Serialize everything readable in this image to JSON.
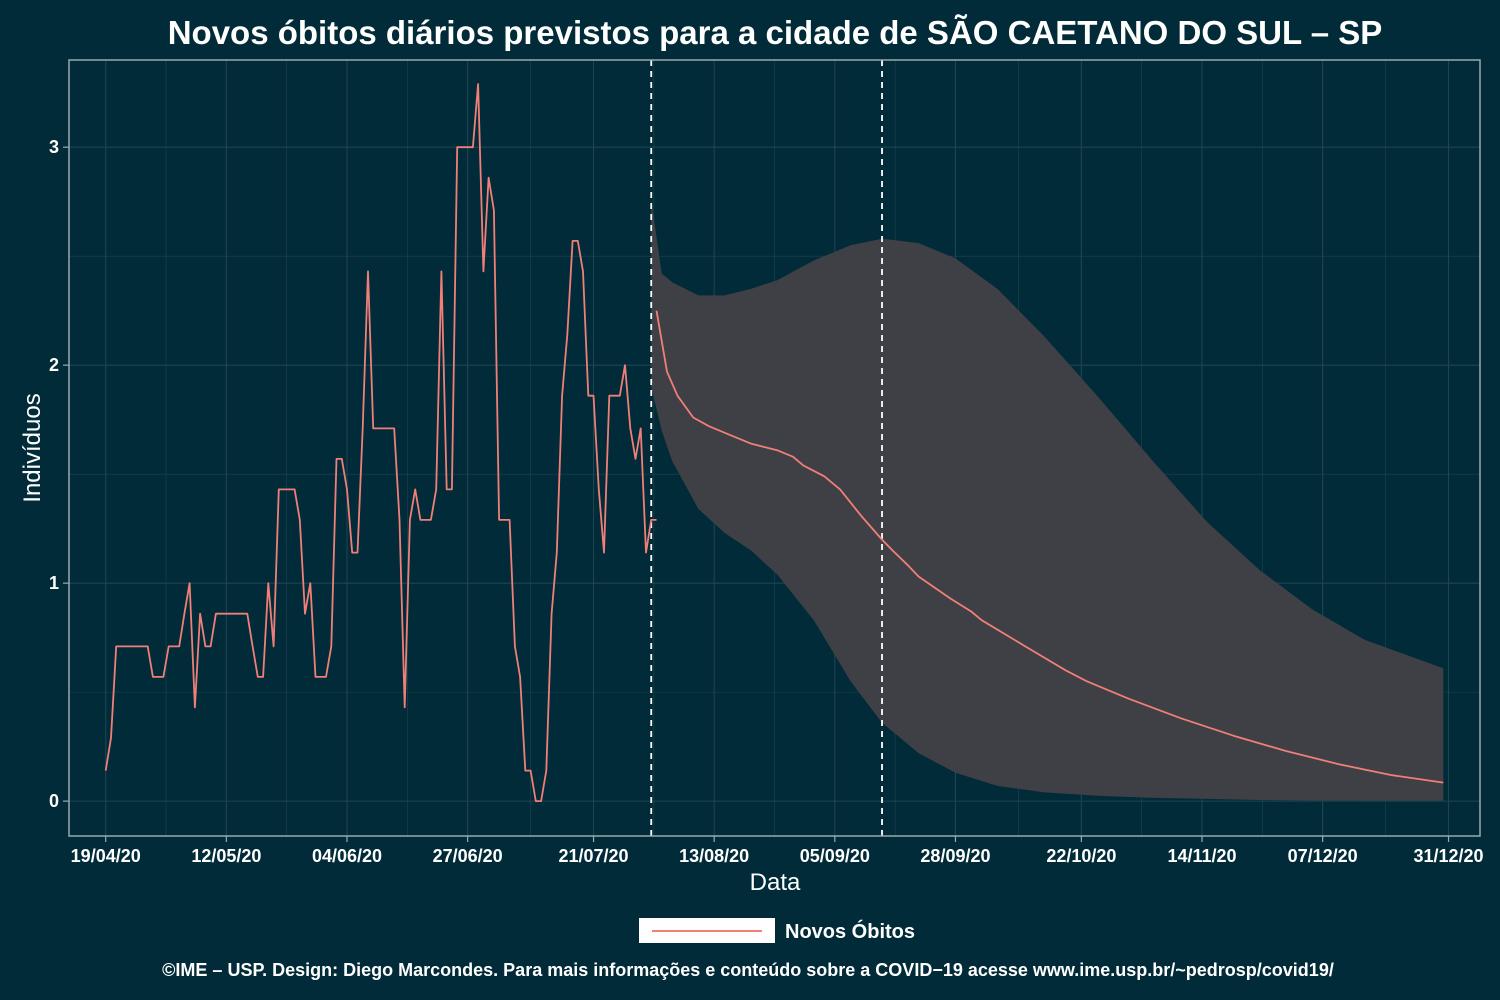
{
  "chart_data": {
    "type": "line",
    "title": "Novos óbitos diários previstos para a cidade de SÃO CAETANO DO SUL – SP",
    "xlabel": "Data",
    "ylabel": "Indivíduos",
    "caption": "©IME – USP. Design: Diego Marcondes. Para mais informações e conteúdo sobre a COVID−19 acesse www.ime.usp.br/~pedrosp/covid19/",
    "x_start": "2020-04-19",
    "xlim": [
      "2020-04-12",
      "2021-01-06"
    ],
    "ylim": [
      -0.16,
      3.4
    ],
    "x_ticks": [
      "19/04/20",
      "12/05/20",
      "04/06/20",
      "27/06/20",
      "21/07/20",
      "13/08/20",
      "05/09/20",
      "28/09/20",
      "22/10/20",
      "14/11/20",
      "07/12/20",
      "31/12/20"
    ],
    "y_ticks": [
      "0",
      "1",
      "2",
      "3"
    ],
    "grid": true,
    "legend": {
      "position": "bottom",
      "entries": [
        "Novos Óbitos"
      ]
    },
    "colors": {
      "background": "#012b38",
      "line": "#f07f78",
      "band": "#3f3f46",
      "grid": "#1d4552",
      "axis": "#9aaaaf",
      "vline": "#ffffff",
      "legend_key": "#ffffff"
    },
    "vlines": [
      "2020-08-01",
      "2020-09-14"
    ],
    "series": [
      {
        "name": "Novos Óbitos",
        "segment": "observado",
        "points": [
          [
            "2020-04-19",
            0.14
          ],
          [
            "2020-04-20",
            0.29
          ],
          [
            "2020-04-21",
            0.71
          ],
          [
            "2020-04-22",
            0.71
          ],
          [
            "2020-04-23",
            0.71
          ],
          [
            "2020-04-24",
            0.71
          ],
          [
            "2020-04-25",
            0.71
          ],
          [
            "2020-04-26",
            0.71
          ],
          [
            "2020-04-27",
            0.71
          ],
          [
            "2020-04-28",
            0.57
          ],
          [
            "2020-04-29",
            0.57
          ],
          [
            "2020-04-30",
            0.57
          ],
          [
            "2020-05-01",
            0.71
          ],
          [
            "2020-05-02",
            0.71
          ],
          [
            "2020-05-03",
            0.71
          ],
          [
            "2020-05-04",
            0.86
          ],
          [
            "2020-05-05",
            1.0
          ],
          [
            "2020-05-06",
            0.43
          ],
          [
            "2020-05-07",
            0.86
          ],
          [
            "2020-05-08",
            0.71
          ],
          [
            "2020-05-09",
            0.71
          ],
          [
            "2020-05-10",
            0.86
          ],
          [
            "2020-05-11",
            0.86
          ],
          [
            "2020-05-12",
            0.86
          ],
          [
            "2020-05-13",
            0.86
          ],
          [
            "2020-05-14",
            0.86
          ],
          [
            "2020-05-15",
            0.86
          ],
          [
            "2020-05-16",
            0.86
          ],
          [
            "2020-05-17",
            0.71
          ],
          [
            "2020-05-18",
            0.57
          ],
          [
            "2020-05-19",
            0.57
          ],
          [
            "2020-05-20",
            1.0
          ],
          [
            "2020-05-21",
            0.71
          ],
          [
            "2020-05-22",
            1.43
          ],
          [
            "2020-05-23",
            1.43
          ],
          [
            "2020-05-24",
            1.43
          ],
          [
            "2020-05-25",
            1.43
          ],
          [
            "2020-05-26",
            1.29
          ],
          [
            "2020-05-27",
            0.86
          ],
          [
            "2020-05-28",
            1.0
          ],
          [
            "2020-05-29",
            0.57
          ],
          [
            "2020-05-30",
            0.57
          ],
          [
            "2020-05-31",
            0.57
          ],
          [
            "2020-06-01",
            0.71
          ],
          [
            "2020-06-02",
            1.57
          ],
          [
            "2020-06-03",
            1.57
          ],
          [
            "2020-06-04",
            1.43
          ],
          [
            "2020-06-05",
            1.14
          ],
          [
            "2020-06-06",
            1.14
          ],
          [
            "2020-06-07",
            1.71
          ],
          [
            "2020-06-08",
            2.43
          ],
          [
            "2020-06-09",
            1.71
          ],
          [
            "2020-06-10",
            1.71
          ],
          [
            "2020-06-11",
            1.71
          ],
          [
            "2020-06-12",
            1.71
          ],
          [
            "2020-06-13",
            1.71
          ],
          [
            "2020-06-14",
            1.29
          ],
          [
            "2020-06-15",
            0.43
          ],
          [
            "2020-06-16",
            1.29
          ],
          [
            "2020-06-17",
            1.43
          ],
          [
            "2020-06-18",
            1.29
          ],
          [
            "2020-06-19",
            1.29
          ],
          [
            "2020-06-20",
            1.29
          ],
          [
            "2020-06-21",
            1.43
          ],
          [
            "2020-06-22",
            2.43
          ],
          [
            "2020-06-23",
            1.43
          ],
          [
            "2020-06-24",
            1.43
          ],
          [
            "2020-06-25",
            3.0
          ],
          [
            "2020-06-26",
            3.0
          ],
          [
            "2020-06-27",
            3.0
          ],
          [
            "2020-06-28",
            3.0
          ],
          [
            "2020-06-29",
            3.29
          ],
          [
            "2020-06-30",
            2.43
          ],
          [
            "2020-07-01",
            2.86
          ],
          [
            "2020-07-02",
            2.71
          ],
          [
            "2020-07-03",
            1.29
          ],
          [
            "2020-07-04",
            1.29
          ],
          [
            "2020-07-05",
            1.29
          ],
          [
            "2020-07-06",
            0.71
          ],
          [
            "2020-07-07",
            0.57
          ],
          [
            "2020-07-08",
            0.14
          ],
          [
            "2020-07-09",
            0.14
          ],
          [
            "2020-07-10",
            0.0
          ],
          [
            "2020-07-11",
            0.0
          ],
          [
            "2020-07-12",
            0.14
          ],
          [
            "2020-07-13",
            0.86
          ],
          [
            "2020-07-14",
            1.14
          ],
          [
            "2020-07-15",
            1.86
          ],
          [
            "2020-07-16",
            2.14
          ],
          [
            "2020-07-17",
            2.57
          ],
          [
            "2020-07-18",
            2.57
          ],
          [
            "2020-07-19",
            2.43
          ],
          [
            "2020-07-20",
            1.86
          ],
          [
            "2020-07-21",
            1.86
          ],
          [
            "2020-07-22",
            1.43
          ],
          [
            "2020-07-23",
            1.14
          ],
          [
            "2020-07-24",
            1.86
          ],
          [
            "2020-07-25",
            1.86
          ],
          [
            "2020-07-26",
            1.86
          ],
          [
            "2020-07-27",
            2.0
          ],
          [
            "2020-07-28",
            1.71
          ],
          [
            "2020-07-29",
            1.57
          ],
          [
            "2020-07-30",
            1.71
          ],
          [
            "2020-07-31",
            1.14
          ],
          [
            "2020-08-01",
            1.29
          ],
          [
            "2020-08-02",
            1.29
          ]
        ]
      },
      {
        "name": "Novos Óbitos",
        "segment": "previsto",
        "points": [
          [
            "2020-08-02",
            2.25
          ],
          [
            "2020-08-04",
            1.97
          ],
          [
            "2020-08-06",
            1.86
          ],
          [
            "2020-08-09",
            1.76
          ],
          [
            "2020-08-12",
            1.72
          ],
          [
            "2020-08-16",
            1.68
          ],
          [
            "2020-08-20",
            1.64
          ],
          [
            "2020-08-25",
            1.61
          ],
          [
            "2020-08-28",
            1.58
          ],
          [
            "2020-08-30",
            1.54
          ],
          [
            "2020-09-03",
            1.49
          ],
          [
            "2020-09-06",
            1.43
          ],
          [
            "2020-09-10",
            1.31
          ],
          [
            "2020-09-14",
            1.2
          ],
          [
            "2020-09-16",
            1.15
          ],
          [
            "2020-09-19",
            1.08
          ],
          [
            "2020-09-21",
            1.03
          ],
          [
            "2020-09-27",
            0.93
          ],
          [
            "2020-10-01",
            0.87
          ],
          [
            "2020-10-03",
            0.83
          ],
          [
            "2020-10-12",
            0.7
          ],
          [
            "2020-10-19",
            0.6
          ],
          [
            "2020-10-23",
            0.55
          ],
          [
            "2020-10-31",
            0.47
          ],
          [
            "2020-11-10",
            0.38
          ],
          [
            "2020-11-20",
            0.3
          ],
          [
            "2020-11-30",
            0.23
          ],
          [
            "2020-12-10",
            0.17
          ],
          [
            "2020-12-20",
            0.12
          ],
          [
            "2020-12-30",
            0.085
          ]
        ]
      }
    ],
    "band": {
      "name": "intervalo de previsão",
      "x": [
        "2020-08-01",
        "2020-08-03",
        "2020-08-05",
        "2020-08-10",
        "2020-08-15",
        "2020-08-20",
        "2020-08-25",
        "2020-09-01",
        "2020-09-08",
        "2020-09-14",
        "2020-09-21",
        "2020-09-28",
        "2020-10-06",
        "2020-10-15",
        "2020-10-25",
        "2020-11-05",
        "2020-11-15",
        "2020-11-25",
        "2020-12-05",
        "2020-12-15",
        "2020-12-30"
      ],
      "upper": [
        2.76,
        2.42,
        2.38,
        2.32,
        2.32,
        2.35,
        2.39,
        2.48,
        2.55,
        2.58,
        2.56,
        2.49,
        2.35,
        2.13,
        1.86,
        1.55,
        1.28,
        1.06,
        0.88,
        0.74,
        0.61
      ],
      "lower": [
        1.9,
        1.7,
        1.56,
        1.34,
        1.23,
        1.15,
        1.04,
        0.83,
        0.55,
        0.36,
        0.22,
        0.13,
        0.07,
        0.04,
        0.025,
        0.015,
        0.01,
        0.005,
        0.003,
        0.002,
        0.002
      ]
    }
  }
}
